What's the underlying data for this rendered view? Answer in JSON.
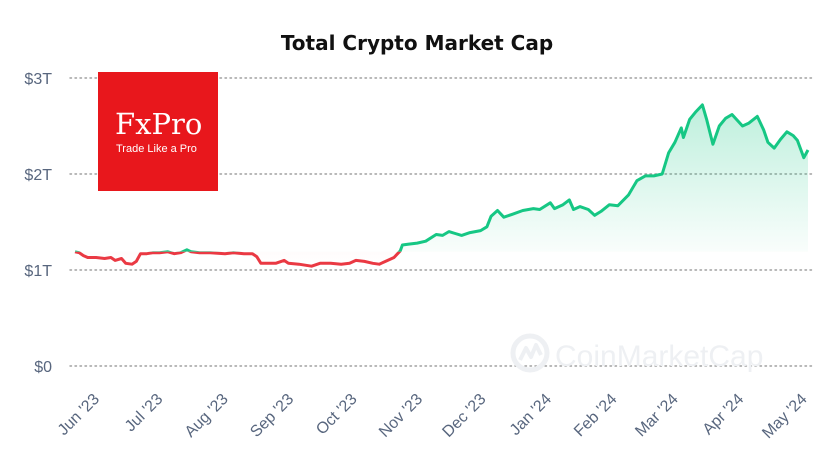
{
  "chart_data": {
    "type": "line",
    "title": "Total Crypto Market Cap",
    "y_unit": "USD trillions",
    "ylim": [
      0,
      3
    ],
    "y_ticks": [
      {
        "value": 0,
        "label": "$0"
      },
      {
        "value": 1,
        "label": "$1T"
      },
      {
        "value": 2,
        "label": "$2T"
      },
      {
        "value": 3,
        "label": "$3T"
      }
    ],
    "x_ticks": [
      "Jun '23",
      "Jul '23",
      "Aug '23",
      "Sep '23",
      "Oct '23",
      "Nov '23",
      "Dec '23",
      "Jan '24",
      "Feb '24",
      "Mar '24",
      "Apr '24",
      "May '24"
    ],
    "grid": {
      "horizontal": true,
      "style": "dotted"
    },
    "colors": {
      "up": "#16c784",
      "down": "#ea3943",
      "grid": "#a0a0a0",
      "axis_text": "#58667e"
    },
    "series": [
      {
        "points": [
          [
            "2023-05-22",
            1.19
          ],
          [
            "2023-05-24",
            1.18
          ],
          [
            "2023-05-26",
            1.15
          ],
          [
            "2023-05-28",
            1.13
          ],
          [
            "2023-06-01",
            1.13
          ],
          [
            "2023-06-05",
            1.12
          ],
          [
            "2023-06-08",
            1.13
          ],
          [
            "2023-06-10",
            1.1
          ],
          [
            "2023-06-13",
            1.12
          ],
          [
            "2023-06-15",
            1.07
          ],
          [
            "2023-06-18",
            1.06
          ],
          [
            "2023-06-20",
            1.09
          ],
          [
            "2023-06-22",
            1.17
          ],
          [
            "2023-06-25",
            1.17
          ],
          [
            "2023-06-28",
            1.18
          ],
          [
            "2023-07-01",
            1.18
          ],
          [
            "2023-07-05",
            1.19
          ],
          [
            "2023-07-08",
            1.17
          ],
          [
            "2023-07-11",
            1.18
          ],
          [
            "2023-07-14",
            1.21
          ],
          [
            "2023-07-16",
            1.19
          ],
          [
            "2023-07-20",
            1.18
          ],
          [
            "2023-07-25",
            1.18
          ],
          [
            "2023-08-01",
            1.17
          ],
          [
            "2023-08-05",
            1.18
          ],
          [
            "2023-08-10",
            1.17
          ],
          [
            "2023-08-14",
            1.17
          ],
          [
            "2023-08-16",
            1.14
          ],
          [
            "2023-08-18",
            1.07
          ],
          [
            "2023-08-22",
            1.07
          ],
          [
            "2023-08-25",
            1.07
          ],
          [
            "2023-08-29",
            1.1
          ],
          [
            "2023-08-31",
            1.07
          ],
          [
            "2023-09-05",
            1.06
          ],
          [
            "2023-09-11",
            1.04
          ],
          [
            "2023-09-15",
            1.07
          ],
          [
            "2023-09-20",
            1.07
          ],
          [
            "2023-09-25",
            1.06
          ],
          [
            "2023-09-29",
            1.07
          ],
          [
            "2023-10-02",
            1.1
          ],
          [
            "2023-10-06",
            1.09
          ],
          [
            "2023-10-10",
            1.07
          ],
          [
            "2023-10-13",
            1.06
          ],
          [
            "2023-10-16",
            1.09
          ],
          [
            "2023-10-20",
            1.13
          ],
          [
            "2023-10-23",
            1.2
          ],
          [
            "2023-10-24",
            1.26
          ],
          [
            "2023-10-27",
            1.27
          ],
          [
            "2023-10-31",
            1.28
          ],
          [
            "2023-11-04",
            1.3
          ],
          [
            "2023-11-09",
            1.37
          ],
          [
            "2023-11-12",
            1.36
          ],
          [
            "2023-11-15",
            1.4
          ],
          [
            "2023-11-18",
            1.38
          ],
          [
            "2023-11-21",
            1.36
          ],
          [
            "2023-11-25",
            1.39
          ],
          [
            "2023-11-30",
            1.41
          ],
          [
            "2023-12-03",
            1.45
          ],
          [
            "2023-12-05",
            1.56
          ],
          [
            "2023-12-08",
            1.62
          ],
          [
            "2023-12-11",
            1.55
          ],
          [
            "2023-12-15",
            1.58
          ],
          [
            "2023-12-20",
            1.62
          ],
          [
            "2023-12-25",
            1.64
          ],
          [
            "2023-12-28",
            1.63
          ],
          [
            "2024-01-02",
            1.7
          ],
          [
            "2024-01-04",
            1.64
          ],
          [
            "2024-01-08",
            1.68
          ],
          [
            "2024-01-11",
            1.73
          ],
          [
            "2024-01-13",
            1.63
          ],
          [
            "2024-01-16",
            1.66
          ],
          [
            "2024-01-20",
            1.63
          ],
          [
            "2024-01-23",
            1.57
          ],
          [
            "2024-01-26",
            1.61
          ],
          [
            "2024-01-30",
            1.68
          ],
          [
            "2024-02-03",
            1.67
          ],
          [
            "2024-02-08",
            1.78
          ],
          [
            "2024-02-12",
            1.93
          ],
          [
            "2024-02-16",
            1.98
          ],
          [
            "2024-02-20",
            1.98
          ],
          [
            "2024-02-24",
            2.0
          ],
          [
            "2024-02-27",
            2.22
          ],
          [
            "2024-03-01",
            2.33
          ],
          [
            "2024-03-04",
            2.48
          ],
          [
            "2024-03-05",
            2.38
          ],
          [
            "2024-03-08",
            2.57
          ],
          [
            "2024-03-11",
            2.65
          ],
          [
            "2024-03-14",
            2.72
          ],
          [
            "2024-03-16",
            2.57
          ],
          [
            "2024-03-19",
            2.31
          ],
          [
            "2024-03-22",
            2.5
          ],
          [
            "2024-03-25",
            2.58
          ],
          [
            "2024-03-28",
            2.62
          ],
          [
            "2024-04-02",
            2.5
          ],
          [
            "2024-04-05",
            2.53
          ],
          [
            "2024-04-09",
            2.6
          ],
          [
            "2024-04-12",
            2.46
          ],
          [
            "2024-04-14",
            2.33
          ],
          [
            "2024-04-17",
            2.27
          ],
          [
            "2024-04-20",
            2.36
          ],
          [
            "2024-04-23",
            2.44
          ],
          [
            "2024-04-26",
            2.4
          ],
          [
            "2024-04-28",
            2.35
          ],
          [
            "2024-05-01",
            2.17
          ],
          [
            "2024-05-03",
            2.25
          ]
        ]
      }
    ]
  },
  "logo": {
    "name": "FxPro",
    "tagline": "Trade Like a Pro",
    "color": "#e8171c"
  },
  "watermark": {
    "text": "CoinMarketCap"
  }
}
